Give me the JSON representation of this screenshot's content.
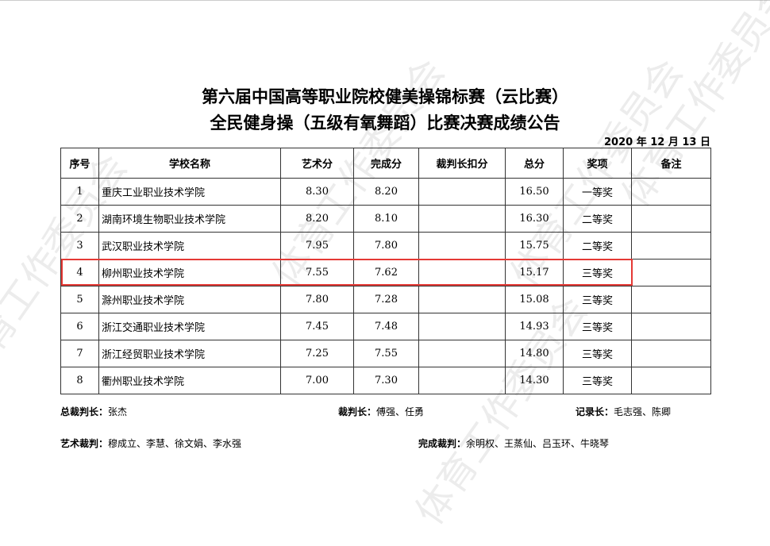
{
  "title_line1": "第六届中国高等职业院校健美操锦标赛（云比赛）",
  "title_line2": "全民健身操（五级有氧舞蹈）比赛决赛成绩公告",
  "date": "2020 年 12 月 13 日",
  "headers": [
    "序号",
    "学校名称",
    "艺术分",
    "完成分",
    "裁判长扣分",
    "总分",
    "奖项",
    "备注"
  ],
  "rows": [
    [
      "1",
      "重庆工业职业技术学院",
      "8.30",
      "8.20",
      "",
      "16.50",
      "一等奖",
      ""
    ],
    [
      "2",
      "湖南环境生物职业技术学院",
      "8.20",
      "8.10",
      "",
      "16.30",
      "二等奖",
      ""
    ],
    [
      "3",
      "武汉职业技术学院",
      "7.95",
      "7.80",
      "",
      "15.75",
      "二等奖",
      ""
    ],
    [
      "4",
      "柳州职业技术学院",
      "7.55",
      "7.62",
      "",
      "15.17",
      "三等奖",
      ""
    ],
    [
      "5",
      "滁州职业技术学院",
      "7.80",
      "7.28",
      "",
      "15.08",
      "三等奖",
      ""
    ],
    [
      "6",
      "浙江交通职业技术学院",
      "7.45",
      "7.48",
      "",
      "14.93",
      "三等奖",
      ""
    ],
    [
      "7",
      "浙江经贸职业技术学院",
      "7.25",
      "7.55",
      "",
      "14.80",
      "三等奖",
      ""
    ],
    [
      "8",
      "衢州职业技术学院",
      "7.00",
      "7.30",
      "",
      "14.30",
      "三等奖",
      ""
    ]
  ],
  "highlight_color": "#e53935",
  "highlight_row": "4",
  "footer": {
    "chief_judge_label": "总裁判长：",
    "chief_judge": "张杰",
    "judge_head_label": "裁判长：",
    "judge_head": "傅强、任勇",
    "recorder_label": "记录长：",
    "recorder": "毛志强、陈卿",
    "art_judges_label": "艺术裁判：",
    "art_judges": "穆成立、李慧、徐文娟、李水强",
    "exec_judges_label": "完成裁判：",
    "exec_judges": "余明权、王蒸仙、吕玉环、牛晓琴"
  },
  "watermark": "体育工作委员会"
}
